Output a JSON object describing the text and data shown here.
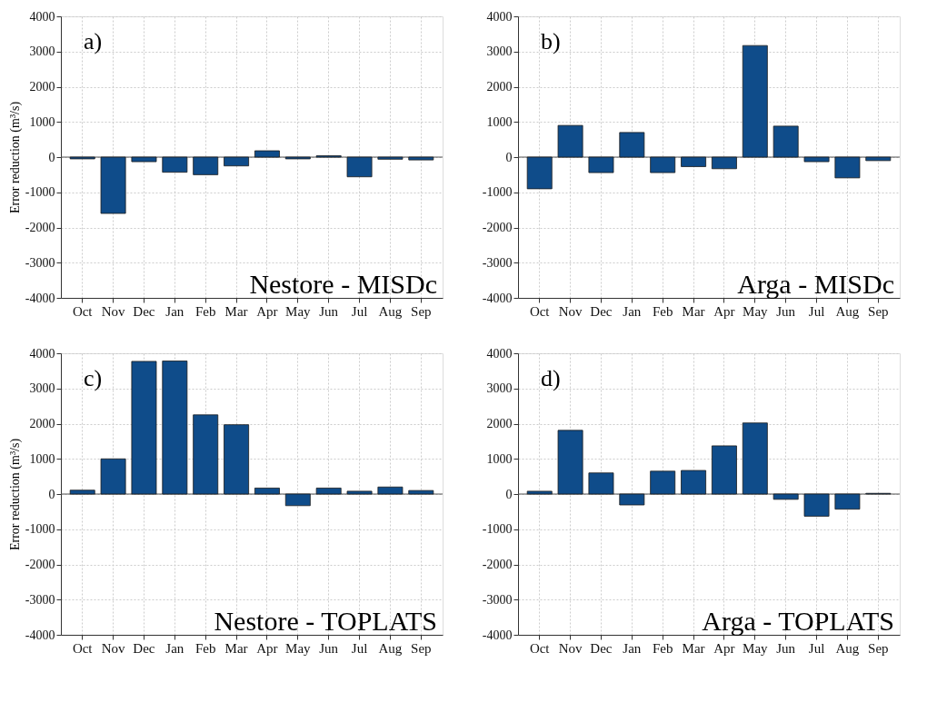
{
  "chart_data": [
    {
      "type": "bar",
      "ylabel": "Error reduction (m³/s)",
      "annotations": [
        "a)",
        "Nestore - MISDc"
      ],
      "categories": [
        "Oct",
        "Nov",
        "Dec",
        "Jan",
        "Feb",
        "Mar",
        "Apr",
        "May",
        "Jun",
        "Jul",
        "Aug",
        "Sep"
      ],
      "series": [
        {
          "color": "#0f4c8a",
          "values": [
            -50,
            -1600,
            -130,
            -430,
            -500,
            -250,
            180,
            -50,
            40,
            -560,
            -60,
            -80
          ]
        }
      ],
      "ylim": [
        -4000,
        4000
      ],
      "yticks": [
        -4000,
        -3000,
        -2000,
        -1000,
        0,
        1000,
        2000,
        3000,
        4000
      ],
      "grid": true,
      "ref_lines": [
        {
          "axis": "y",
          "value": 0,
          "color": "#555555"
        }
      ]
    },
    {
      "type": "bar",
      "annotations": [
        "b)",
        "Arga - MISDc"
      ],
      "categories": [
        "Oct",
        "Nov",
        "Dec",
        "Jan",
        "Feb",
        "Mar",
        "Apr",
        "May",
        "Jun",
        "Jul",
        "Aug",
        "Sep"
      ],
      "series": [
        {
          "color": "#0f4c8a",
          "values": [
            -900,
            900,
            -440,
            700,
            -440,
            -270,
            -330,
            3170,
            880,
            -130,
            -590,
            -100
          ]
        }
      ],
      "ylim": [
        -4000,
        4000
      ],
      "yticks": [
        -4000,
        -3000,
        -2000,
        -1000,
        0,
        1000,
        2000,
        3000,
        4000
      ],
      "grid": true,
      "ref_lines": [
        {
          "axis": "y",
          "value": 0,
          "color": "#555555"
        }
      ]
    },
    {
      "type": "bar",
      "ylabel": "Error reduction (m³/s)",
      "annotations": [
        "c)",
        "Nestore - TOPLATS"
      ],
      "categories": [
        "Oct",
        "Nov",
        "Dec",
        "Jan",
        "Feb",
        "Mar",
        "Apr",
        "May",
        "Jun",
        "Jul",
        "Aug",
        "Sep"
      ],
      "series": [
        {
          "color": "#0f4c8a",
          "values": [
            110,
            1000,
            3770,
            3780,
            2250,
            1970,
            170,
            -330,
            170,
            80,
            200,
            100
          ]
        }
      ],
      "ylim": [
        -4000,
        4000
      ],
      "yticks": [
        -4000,
        -3000,
        -2000,
        -1000,
        0,
        1000,
        2000,
        3000,
        4000
      ],
      "grid": true,
      "ref_lines": [
        {
          "axis": "y",
          "value": 0,
          "color": "#555555"
        }
      ]
    },
    {
      "type": "bar",
      "annotations": [
        "d)",
        "Arga - TOPLATS"
      ],
      "categories": [
        "Oct",
        "Nov",
        "Dec",
        "Jan",
        "Feb",
        "Mar",
        "Apr",
        "May",
        "Jun",
        "Jul",
        "Aug",
        "Sep"
      ],
      "series": [
        {
          "color": "#0f4c8a",
          "values": [
            80,
            1810,
            600,
            -310,
            650,
            670,
            1370,
            2020,
            -150,
            -630,
            -430,
            20
          ]
        }
      ],
      "ylim": [
        -4000,
        4000
      ],
      "yticks": [
        -4000,
        -3000,
        -2000,
        -1000,
        0,
        1000,
        2000,
        3000,
        4000
      ],
      "grid": true,
      "ref_lines": [
        {
          "axis": "y",
          "value": 0,
          "color": "#555555"
        }
      ]
    }
  ]
}
